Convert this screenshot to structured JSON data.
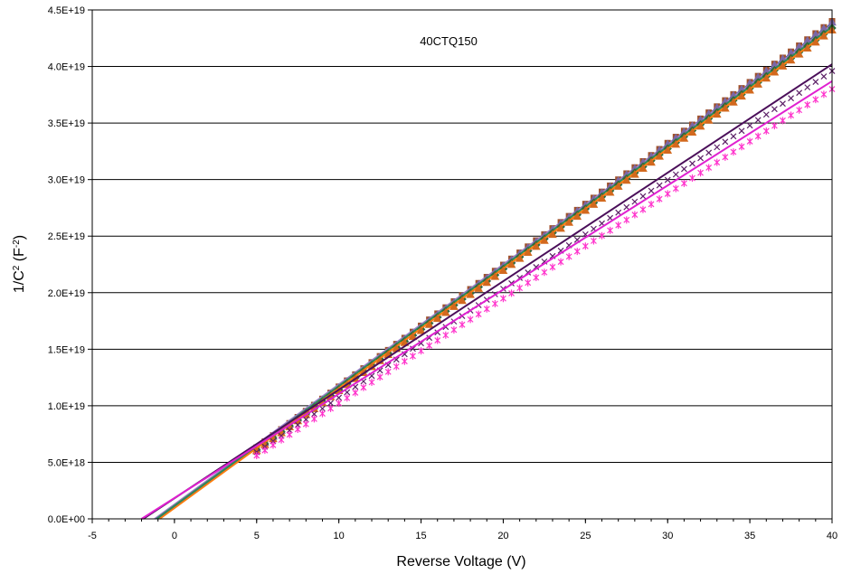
{
  "chart_data": {
    "type": "scatter",
    "title": "40CTQ150",
    "xlabel": "Reverse Voltage (V)",
    "ylabel_base": "1/C",
    "ylabel_sup1": "2",
    "ylabel_mid": " (F",
    "ylabel_sup2": "-2",
    "ylabel_end": ")",
    "xlim": [
      -5,
      40
    ],
    "ylim": [
      0,
      4.5e+19
    ],
    "xticks": [
      "-5",
      "0",
      "5",
      "10",
      "15",
      "20",
      "25",
      "30",
      "35",
      "40"
    ],
    "yticks": [
      "0.0E+00",
      "5.0E+18",
      "1.0E+19",
      "1.5E+19",
      "2.0E+19",
      "2.5E+19",
      "3.0E+19",
      "3.5E+19",
      "4.0E+19",
      "4.5E+19"
    ],
    "grid": "horizontal",
    "x_start": 5,
    "x_step": 0.5,
    "series": [
      {
        "color": "#a0522d",
        "marker": "square",
        "fit_color": "#1f4e9c",
        "fit": [
          [
            -1.0,
            0
          ],
          [
            40,
            4.38e+19
          ]
        ],
        "points_from": [
          5,
          6.3e+18
        ],
        "points_to": [
          40,
          4.4e+19
        ]
      },
      {
        "color": "#7b68a6",
        "marker": "triangle",
        "fit_color": "#9b7fc9",
        "fit": [
          [
            -1.2,
            0
          ],
          [
            40,
            4.37e+19
          ]
        ],
        "points_from": [
          5,
          6.2e+18
        ],
        "points_to": [
          40,
          4.39e+19
        ]
      },
      {
        "color": "#2f6b3a",
        "marker": "diamond",
        "fit_color": "#2e8b57",
        "fit": [
          [
            -1.1,
            0
          ],
          [
            40,
            4.35e+19
          ]
        ],
        "points_from": [
          5,
          6.1e+18
        ],
        "points_to": [
          40,
          4.34e+19
        ]
      },
      {
        "color": "#d2691e",
        "marker": "triangle",
        "fit_color": "#ff7f0e",
        "fit": [
          [
            -0.9,
            0
          ],
          [
            40,
            4.33e+19
          ]
        ],
        "points_from": [
          5,
          6e+18
        ],
        "points_to": [
          40,
          4.32e+19
        ]
      },
      {
        "color": "#5b1f66",
        "marker": "x",
        "fit_color": "#4b0f5a",
        "fit": [
          [
            -1.9,
            0
          ],
          [
            40,
            4.02e+19
          ]
        ],
        "points_from": [
          5,
          5.9e+18
        ],
        "points_to": [
          40,
          3.96e+19
        ]
      },
      {
        "color": "#ff33cc",
        "marker": "star",
        "fit_color": "#e020d0",
        "fit": [
          [
            -2.0,
            0
          ],
          [
            40,
            3.87e+19
          ]
        ],
        "points_from": [
          5,
          5.6e+18
        ],
        "points_to": [
          40,
          3.8e+19
        ]
      }
    ]
  }
}
